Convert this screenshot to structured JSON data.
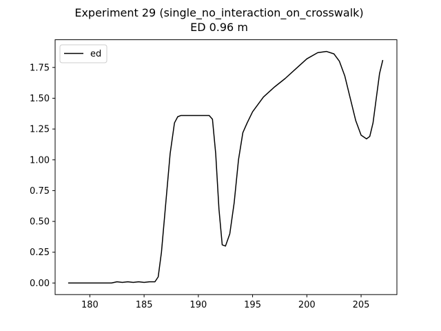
{
  "chart_data": {
    "type": "line",
    "title": "Experiment 29 (single_no_interaction_on_crosswalk)",
    "subtitle": "ED 0.96 m",
    "xlabel": "",
    "ylabel": "",
    "xlim": [
      176.8,
      208.3
    ],
    "ylim": [
      -0.094,
      1.975
    ],
    "x_ticks": [
      180,
      185,
      190,
      195,
      200,
      205
    ],
    "y_ticks": [
      0.0,
      0.25,
      0.5,
      0.75,
      1.0,
      1.25,
      1.5,
      1.75
    ],
    "x_tick_labels": [
      "180",
      "185",
      "190",
      "195",
      "200",
      "205"
    ],
    "y_tick_labels": [
      "0.00",
      "0.25",
      "0.50",
      "0.75",
      "1.00",
      "1.25",
      "1.50",
      "1.75"
    ],
    "grid": false,
    "legend": {
      "placement": "top-left",
      "entries": [
        "ed"
      ]
    },
    "series": [
      {
        "name": "ed",
        "color": "#000000",
        "x": [
          178.0,
          180.0,
          182.0,
          182.5,
          183.0,
          183.5,
          184.0,
          184.5,
          185.0,
          185.5,
          186.0,
          186.3,
          186.6,
          187.0,
          187.4,
          187.8,
          188.1,
          188.4,
          189.0,
          190.0,
          190.5,
          191.0,
          191.3,
          191.6,
          191.9,
          192.2,
          192.5,
          192.9,
          193.3,
          193.7,
          194.1,
          194.5,
          195.0,
          196.0,
          197.0,
          198.0,
          199.0,
          200.0,
          201.0,
          201.8,
          202.5,
          203.0,
          203.5,
          204.0,
          204.5,
          205.0,
          205.5,
          205.8,
          206.1,
          206.4,
          206.7,
          207.0
        ],
        "y": [
          0.0,
          0.0,
          0.0,
          0.01,
          0.005,
          0.01,
          0.005,
          0.01,
          0.005,
          0.01,
          0.01,
          0.05,
          0.25,
          0.65,
          1.05,
          1.3,
          1.35,
          1.36,
          1.36,
          1.36,
          1.36,
          1.36,
          1.33,
          1.05,
          0.6,
          0.31,
          0.3,
          0.4,
          0.65,
          1.0,
          1.22,
          1.3,
          1.39,
          1.51,
          1.59,
          1.66,
          1.74,
          1.82,
          1.87,
          1.88,
          1.86,
          1.8,
          1.68,
          1.5,
          1.32,
          1.2,
          1.17,
          1.19,
          1.3,
          1.5,
          1.7,
          1.81
        ]
      }
    ]
  }
}
